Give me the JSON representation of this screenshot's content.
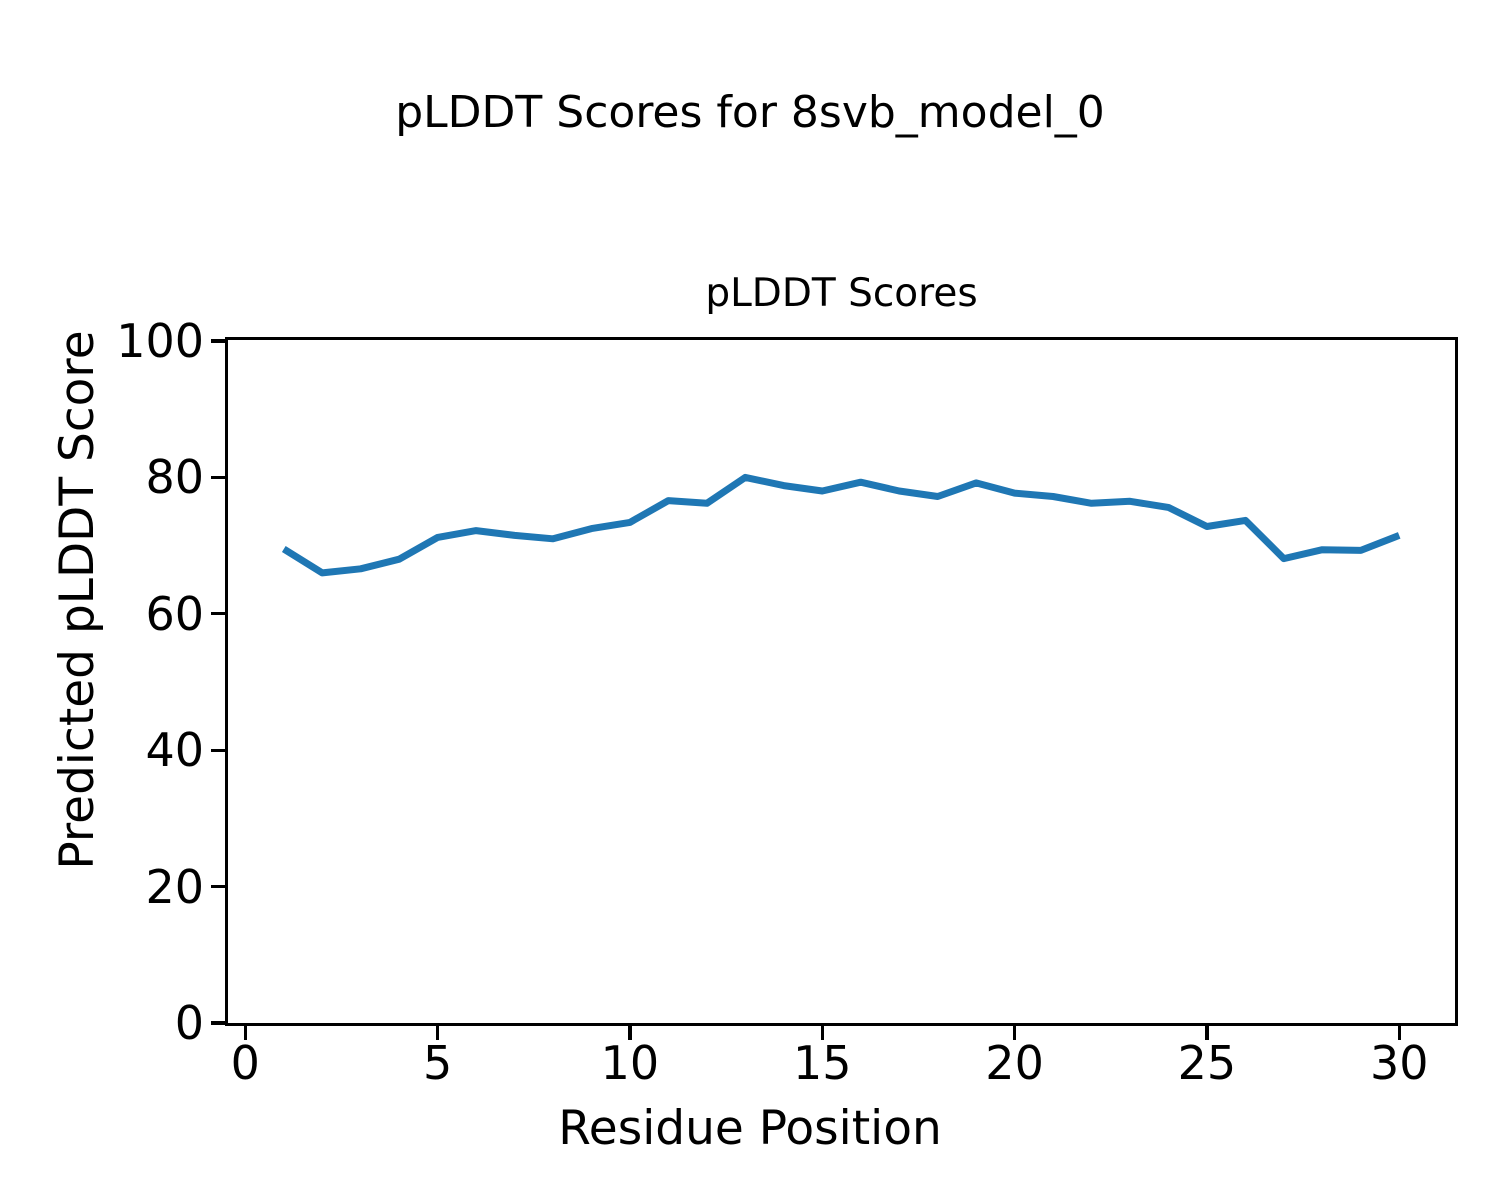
{
  "figure": {
    "title": "pLDDT Scores for 8svb_model_0",
    "background_color": "#ffffff",
    "text_color": "#000000"
  },
  "chart_data": {
    "type": "line",
    "title": "pLDDT Scores",
    "xlabel": "Residue Position",
    "ylabel": "Predicted pLDDT Score",
    "x": [
      1,
      2,
      3,
      4,
      5,
      6,
      7,
      8,
      9,
      10,
      11,
      12,
      13,
      14,
      15,
      16,
      17,
      18,
      19,
      20,
      21,
      22,
      23,
      24,
      25,
      26,
      27,
      28,
      29,
      30
    ],
    "y": [
      69.5,
      66.0,
      66.6,
      68.0,
      71.2,
      72.2,
      71.5,
      71.0,
      72.5,
      73.4,
      76.6,
      76.2,
      80.0,
      78.8,
      78.0,
      79.3,
      78.0,
      77.2,
      79.2,
      77.7,
      77.2,
      76.2,
      76.5,
      75.6,
      72.8,
      73.7,
      68.1,
      69.4,
      69.3,
      71.5
    ],
    "series_name": "pLDDT",
    "xlim": [
      -0.45,
      31.45
    ],
    "ylim": [
      0,
      100
    ],
    "x_ticks": [
      0,
      5,
      10,
      15,
      20,
      25,
      30
    ],
    "y_ticks": [
      0,
      20,
      40,
      60,
      80,
      100
    ],
    "line_color": "#1f77b4",
    "line_width": 7,
    "grid": false,
    "legend_position": "none",
    "spine_color": "#000000"
  }
}
